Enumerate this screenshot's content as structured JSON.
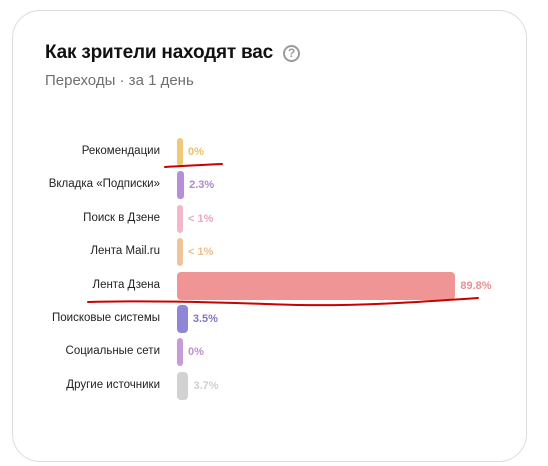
{
  "card": {
    "title": "Как зрители находят вас",
    "help_icon": "question-circle-icon",
    "subtitle": "Переходы · за 1 день"
  },
  "chart_data": {
    "type": "bar",
    "orientation": "horizontal",
    "categories": [
      "Рекомендации",
      "Вкладка «Подписки»",
      "Поиск в Дзене",
      "Лента Mail.ru",
      "Лента Дзена",
      "Поисковые системы",
      "Социальные сети",
      "Другие источники"
    ],
    "values": [
      0,
      2.3,
      0.5,
      0.5,
      89.8,
      3.5,
      0,
      3.7
    ],
    "value_labels": [
      "0%",
      "2.3%",
      "< 1%",
      "< 1%",
      "89.8%",
      "3.5%",
      "0%",
      "3.7%"
    ],
    "colors": [
      "#f0c87a",
      "#b78fd6",
      "#f0b8c8",
      "#f0c49a",
      "#ef9595",
      "#8f86d6",
      "#c79ad9",
      "#d2d2d2"
    ],
    "label_colors": [
      "#ecc06a",
      "#b187d0",
      "#eda6bd",
      "#efbd8c",
      "#e98f8f",
      "#7f77c6",
      "#c08fd3",
      "#cfcfcf"
    ],
    "xlim": [
      0,
      100
    ]
  },
  "annotations": {
    "underline_color": "#cc0000"
  }
}
